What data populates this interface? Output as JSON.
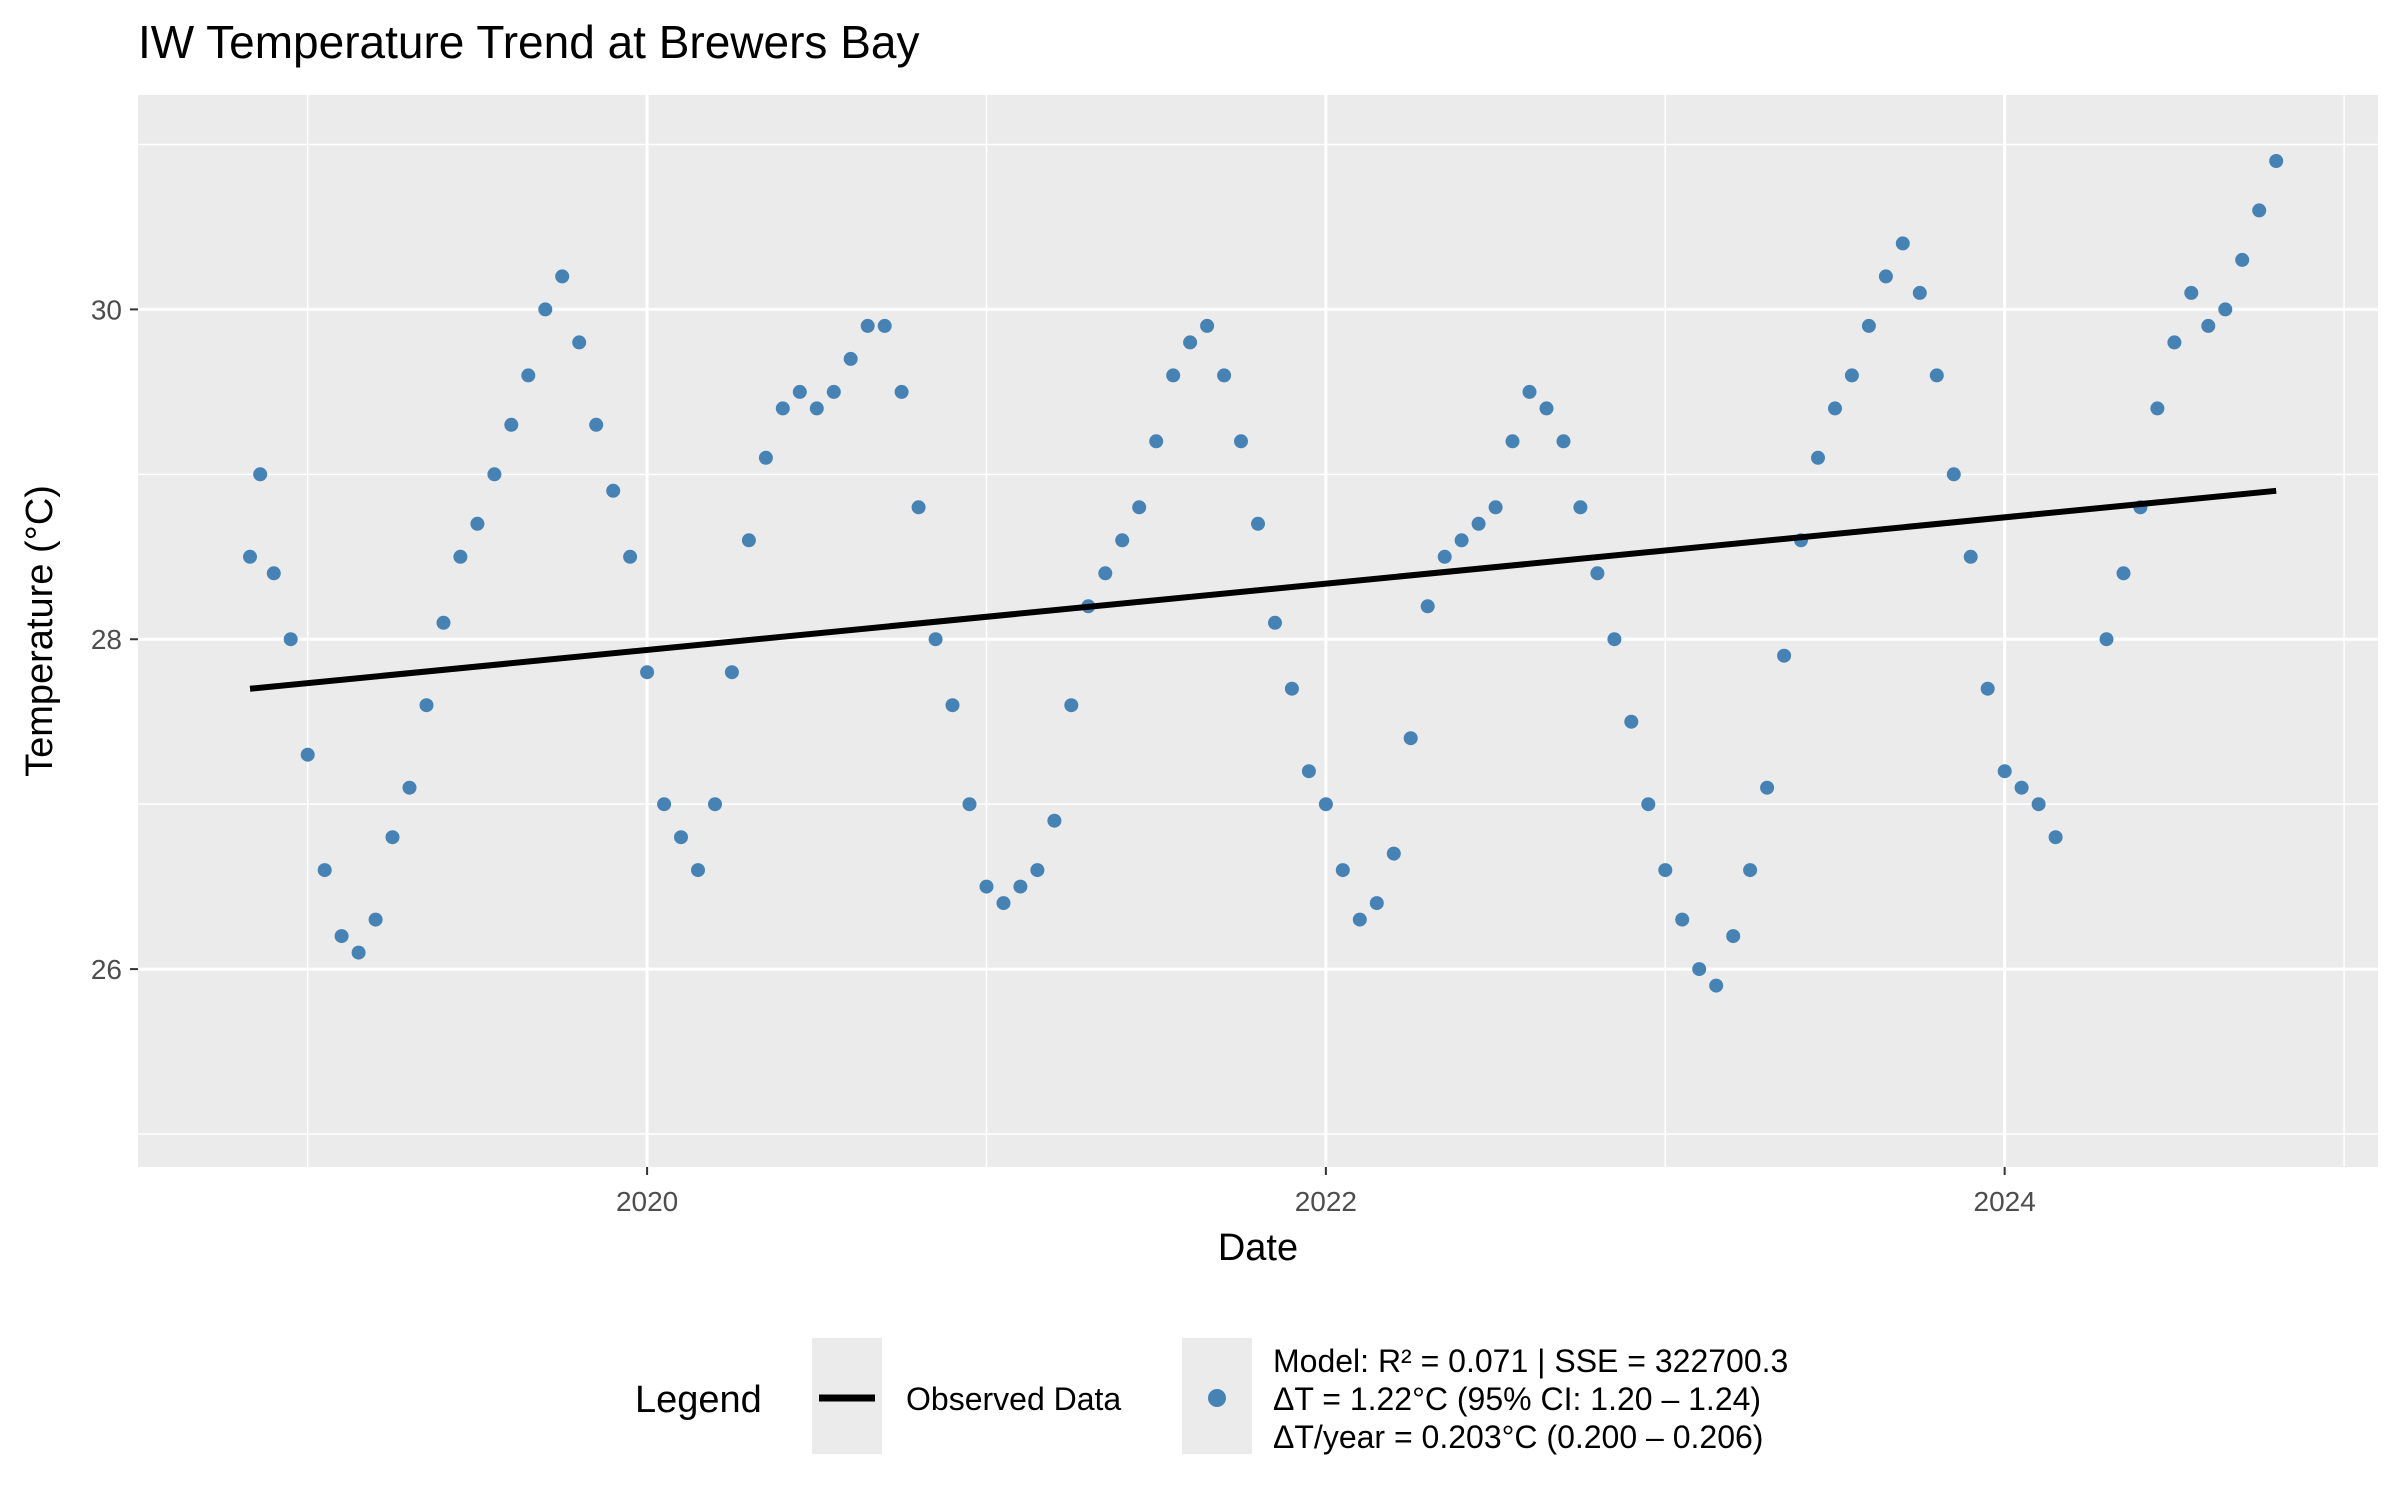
{
  "chart_data": {
    "type": "scatter",
    "title": "IW Temperature Trend at Brewers Bay",
    "xlabel": "Date",
    "ylabel": "Temperature (°C)",
    "x_ticks": [
      2020,
      2022,
      2024
    ],
    "y_ticks": [
      26,
      28,
      30
    ],
    "xlim": [
      2018.5,
      2025.1
    ],
    "ylim": [
      24.8,
      31.3
    ],
    "grid": true,
    "legend_position": "bottom",
    "colors": {
      "points": "#4682B4",
      "trend": "#000000",
      "panel": "#EBEBEB",
      "grid": "#FFFFFF"
    },
    "legend": {
      "title": "Legend",
      "line_label": "Observed Data",
      "model_lines": [
        "Model: R² = 0.071 | SSE = 322700.3",
        "ΔT = 1.22°C (95% CI: 1.20 – 1.24)",
        "ΔT/year = 0.203°C (0.200 – 0.206)"
      ]
    },
    "trend_line": {
      "x": [
        2018.83,
        2024.8
      ],
      "y": [
        27.7,
        28.9
      ]
    },
    "series": [
      {
        "x": [
          2018.83,
          2018.86,
          2018.9,
          2018.95,
          2019.0,
          2019.05,
          2019.1,
          2019.15,
          2019.2,
          2019.25,
          2019.3,
          2019.35,
          2019.4,
          2019.45,
          2019.5,
          2019.55,
          2019.6,
          2019.65,
          2019.7,
          2019.75,
          2019.8,
          2019.85,
          2019.9,
          2019.95,
          2020.0,
          2020.05,
          2020.1,
          2020.15,
          2020.2,
          2020.25,
          2020.3,
          2020.35,
          2020.4,
          2020.45,
          2020.5,
          2020.55,
          2020.6,
          2020.65,
          2020.7,
          2020.75,
          2020.8,
          2020.85,
          2020.9,
          2020.95,
          2021.0,
          2021.05,
          2021.1,
          2021.15,
          2021.2,
          2021.25,
          2021.3,
          2021.35,
          2021.4,
          2021.45,
          2021.5,
          2021.55,
          2021.6,
          2021.65,
          2021.7,
          2021.75,
          2021.8,
          2021.85,
          2021.9,
          2021.95,
          2022.0,
          2022.05,
          2022.1,
          2022.15,
          2022.2,
          2022.25,
          2022.3,
          2022.35,
          2022.4,
          2022.45,
          2022.5,
          2022.55,
          2022.6,
          2022.65,
          2022.7,
          2022.75,
          2022.8,
          2022.85,
          2022.9,
          2022.95,
          2023.0,
          2023.05,
          2023.1,
          2023.15,
          2023.2,
          2023.25,
          2023.3,
          2023.35,
          2023.4,
          2023.45,
          2023.5,
          2023.55,
          2023.6,
          2023.65,
          2023.7,
          2023.75,
          2023.8,
          2023.85,
          2023.9,
          2023.95,
          2024.0,
          2024.05,
          2024.1,
          2024.15,
          2024.3,
          2024.35,
          2024.4,
          2024.45,
          2024.5,
          2024.55,
          2024.6,
          2024.65,
          2024.7,
          2024.75,
          2024.8
        ],
        "y": [
          28.5,
          29.0,
          28.4,
          28.0,
          27.3,
          26.6,
          26.2,
          26.1,
          26.3,
          26.8,
          27.1,
          27.6,
          28.1,
          28.5,
          28.7,
          29.0,
          29.3,
          29.6,
          30.0,
          30.2,
          29.8,
          29.3,
          28.9,
          28.5,
          27.8,
          27.0,
          26.8,
          26.6,
          27.0,
          27.8,
          28.6,
          29.1,
          29.4,
          29.5,
          29.4,
          29.5,
          29.7,
          29.9,
          29.9,
          29.5,
          28.8,
          28.0,
          27.6,
          27.0,
          26.5,
          26.4,
          26.5,
          26.6,
          26.9,
          27.6,
          28.2,
          28.4,
          28.6,
          28.8,
          29.2,
          29.6,
          29.8,
          29.9,
          29.6,
          29.2,
          28.7,
          28.1,
          27.7,
          27.2,
          27.0,
          26.6,
          26.3,
          26.4,
          26.7,
          27.4,
          28.2,
          28.5,
          28.6,
          28.7,
          28.8,
          29.2,
          29.5,
          29.4,
          29.2,
          28.8,
          28.4,
          28.0,
          27.5,
          27.0,
          26.6,
          26.3,
          26.0,
          25.9,
          26.2,
          26.6,
          27.1,
          27.9,
          28.6,
          29.1,
          29.4,
          29.6,
          29.9,
          30.2,
          30.4,
          30.1,
          29.6,
          29.0,
          28.5,
          27.7,
          27.2,
          27.1,
          27.0,
          26.8,
          28.0,
          28.4,
          28.8,
          29.4,
          29.8,
          30.1,
          29.9,
          30.0,
          30.3,
          30.6,
          30.9
        ]
      }
    ]
  }
}
